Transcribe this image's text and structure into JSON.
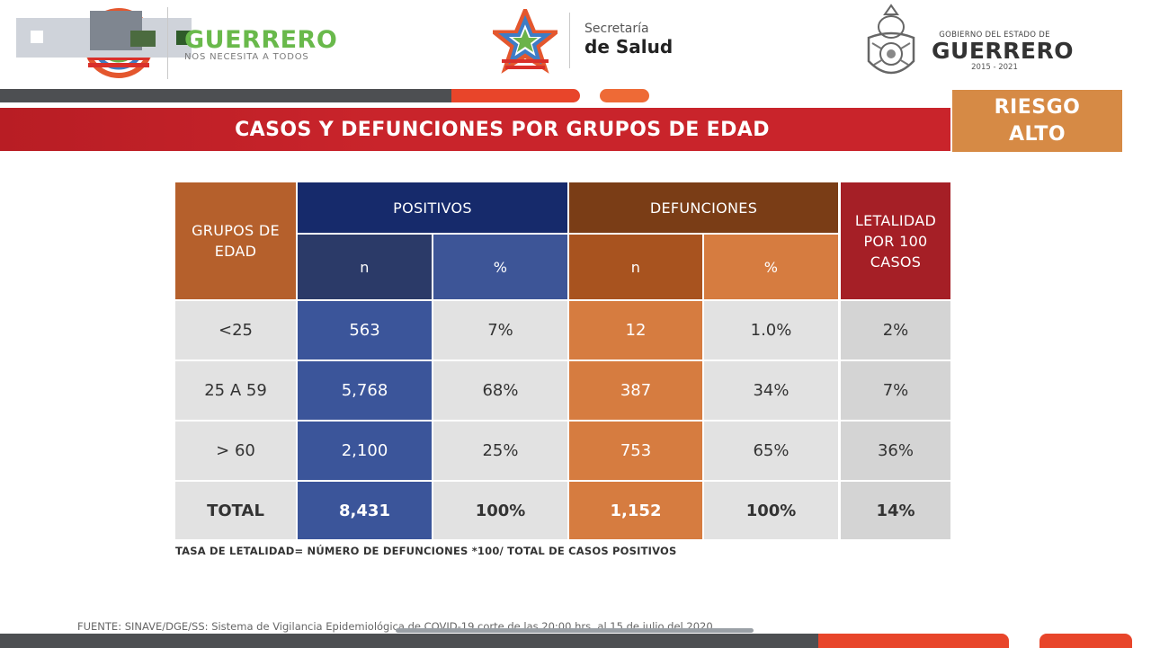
{
  "header": {
    "left_logo": {
      "name": "GUERRERO",
      "tagline": "NOS NECESITA A TODOS"
    },
    "center_logo": {
      "line1": "Secretaría",
      "line2": "de Salud"
    },
    "right_logo": {
      "line1": "GOBIERNO DEL ESTADO DE",
      "line2": "GUERRERO",
      "line3": "2015 - 2021"
    }
  },
  "title": "CASOS Y DEFUNCIONES POR GRUPOS DE EDAD",
  "risk_badge": {
    "line1": "RIESGO",
    "line2": "ALTO"
  },
  "colors": {
    "positivos_header": "#162a6b",
    "positivos_n": "#2e4684",
    "positivos_pct": "#3d5597",
    "defunciones_header": "#7a3d16",
    "defunciones_n": "#b0561f",
    "defunciones_pct": "#d27a3e",
    "letalidad_header": "#a51f26",
    "grupos_header": "#b5602c",
    "title_bar": "#c9242b",
    "risk_badge": "#d68a45"
  },
  "table": {
    "headers": {
      "grupos": "GRUPOS DE EDAD",
      "positivos": "POSITIVOS",
      "defunciones": "DEFUNCIONES",
      "letalidad": "LETALIDAD POR 100 CASOS",
      "n": "n",
      "pct": "%"
    },
    "rows": [
      {
        "grupo": "<25",
        "pos_n": "563",
        "pos_pct": "7%",
        "def_n": "12",
        "def_pct": "1.0%",
        "letalidad": "2%"
      },
      {
        "grupo": "25 A 59",
        "pos_n": "5,768",
        "pos_pct": "68%",
        "def_n": "387",
        "def_pct": "34%",
        "letalidad": "7%"
      },
      {
        "grupo": "> 60",
        "pos_n": "2,100",
        "pos_pct": "25%",
        "def_n": "753",
        "def_pct": "65%",
        "letalidad": "36%"
      },
      {
        "grupo": "TOTAL",
        "pos_n": "8,431",
        "pos_pct": "100%",
        "def_n": "1,152",
        "def_pct": "100%",
        "letalidad": "14%"
      }
    ]
  },
  "footnote": "TASA DE LETALIDAD= NÚMERO DE DEFUNCIONES *100/ TOTAL DE CASOS POSITIVOS",
  "source": "FUENTE: SINAVE/DGE/SS: Sistema de Vigilancia Epidemiológica de COVID-19 corte de las 20:00 hrs. al 15 de julio del 2020"
}
